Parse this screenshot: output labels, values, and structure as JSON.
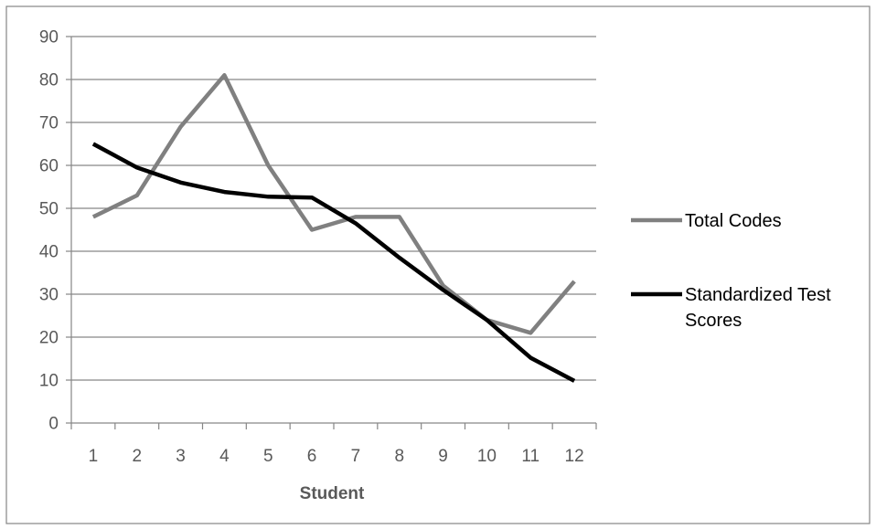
{
  "chart_data": {
    "type": "line",
    "title": "",
    "xlabel": "Student",
    "ylabel": "",
    "categories": [
      "1",
      "2",
      "3",
      "4",
      "5",
      "6",
      "7",
      "8",
      "9",
      "10",
      "11",
      "12"
    ],
    "ylim": [
      0,
      90
    ],
    "yticks": [
      "0",
      "10",
      "20",
      "30",
      "40",
      "50",
      "60",
      "70",
      "80",
      "90"
    ],
    "grid": "horizontal",
    "legend_position": "right",
    "series": [
      {
        "name": "Total Codes",
        "color": "#808080",
        "values": [
          48,
          53,
          69,
          81,
          60,
          45,
          48,
          48,
          32,
          24,
          21,
          33
        ],
        "legend_lines": [
          "Total Codes"
        ]
      },
      {
        "name": "Standardized Test Scores",
        "color": "#000000",
        "values": [
          65,
          59.5,
          56,
          53.8,
          52.7,
          52.5,
          46.5,
          38.5,
          31,
          24,
          15.2,
          9.8
        ],
        "legend_lines": [
          "Standardized Test",
          "Scores"
        ]
      }
    ],
    "colors": {
      "axis": "#868686",
      "grid": "#868686",
      "frame": "#868686",
      "text": "#595959"
    }
  }
}
